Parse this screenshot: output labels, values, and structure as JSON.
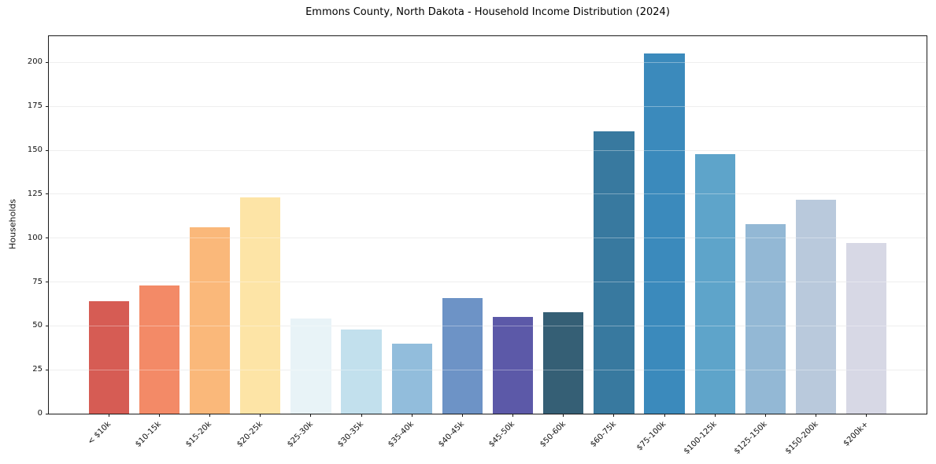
{
  "chart_data": {
    "type": "bar",
    "title": "Emmons County, North Dakota - Household Income Distribution (2024)",
    "xlabel": "",
    "ylabel": "Households",
    "categories": [
      "< $10k",
      "$10-15k",
      "$15-20k",
      "$20-25k",
      "$25-30k",
      "$30-35k",
      "$35-40k",
      "$40-45k",
      "$45-50k",
      "$50-60k",
      "$60-75k",
      "$75-100k",
      "$100-125k",
      "$125-150k",
      "$150-200k",
      "$200k+"
    ],
    "values": [
      64,
      73,
      106,
      123,
      54,
      48,
      40,
      66,
      55,
      58,
      161,
      205,
      148,
      108,
      122,
      97
    ],
    "bar_colors": [
      "#d65c54",
      "#f38a67",
      "#fab87a",
      "#fde4a6",
      "#e8f3f7",
      "#c2e0ed",
      "#92bddc",
      "#6d93c6",
      "#5c59a8",
      "#355f75",
      "#38799f",
      "#3b8abc",
      "#5ea4ca",
      "#93b8d5",
      "#b9c9dc",
      "#d7d8e5"
    ],
    "ylim": [
      0,
      215
    ],
    "yticks": [
      0,
      25,
      50,
      75,
      100,
      125,
      150,
      175,
      200
    ],
    "x_tick_rotation": -45,
    "grid": "horizontal",
    "legend": "none"
  },
  "style": {
    "background": "#ffffff",
    "grid_color": "#e5e5e5",
    "axis_color": "#1a1a1a",
    "tick_text_color": "#111111"
  }
}
